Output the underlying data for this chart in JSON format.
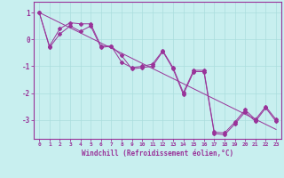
{
  "xlabel": "Windchill (Refroidissement éolien,°C)",
  "background_color": "#c8efef",
  "line_color": "#993399",
  "grid_color": "#aadddd",
  "xlim": [
    -0.5,
    23.5
  ],
  "ylim": [
    -3.7,
    1.4
  ],
  "yticks": [
    1,
    0,
    -1,
    -2,
    -3
  ],
  "xticks": [
    0,
    1,
    2,
    3,
    4,
    5,
    6,
    7,
    8,
    9,
    10,
    11,
    12,
    13,
    14,
    15,
    16,
    17,
    18,
    19,
    20,
    21,
    22,
    23
  ],
  "series1_x": [
    0,
    1,
    2,
    3,
    4,
    5,
    6,
    7,
    8,
    9,
    10,
    11,
    12,
    13,
    14,
    15,
    16,
    17,
    18,
    19,
    20,
    21,
    22,
    23
  ],
  "series1_y": [
    1.0,
    -0.3,
    0.2,
    0.5,
    0.3,
    0.5,
    -0.3,
    -0.25,
    -0.6,
    -1.1,
    -1.05,
    -1.0,
    -0.45,
    -1.1,
    -2.05,
    -1.2,
    -1.2,
    -3.5,
    -3.55,
    -3.15,
    -2.7,
    -3.05,
    -2.55,
    -3.05
  ],
  "series2_x": [
    0,
    1,
    2,
    3,
    4,
    5,
    6,
    7,
    8,
    9,
    10,
    11,
    12,
    13,
    14,
    15,
    16,
    17,
    18,
    19,
    20,
    21,
    22,
    23
  ],
  "series2_y": [
    1.0,
    -0.25,
    0.4,
    0.62,
    0.58,
    0.58,
    -0.25,
    -0.25,
    -0.85,
    -1.05,
    -1.0,
    -0.92,
    -0.42,
    -1.05,
    -1.98,
    -1.15,
    -1.15,
    -3.45,
    -3.48,
    -3.08,
    -2.62,
    -2.98,
    -2.5,
    -2.98
  ],
  "trend_x": [
    0,
    23
  ],
  "trend_y": [
    1.0,
    -3.35
  ]
}
